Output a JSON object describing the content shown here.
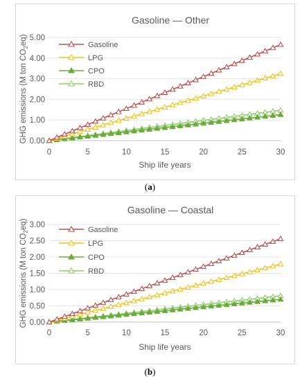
{
  "chart_data": [
    {
      "type": "line",
      "title": "Gasoline — Other",
      "xlabel": "Ship life years",
      "ylabel": "GHG emissions (M ton CO2eq)",
      "ylabel_parts": [
        "GHG emissions (M ton CO",
        "2",
        "eq)"
      ],
      "x": [
        0,
        1,
        2,
        3,
        4,
        5,
        6,
        7,
        8,
        9,
        10,
        11,
        12,
        13,
        14,
        15,
        16,
        17,
        18,
        19,
        20,
        21,
        22,
        23,
        24,
        25,
        26,
        27,
        28,
        29,
        30
      ],
      "xlim": [
        0,
        30
      ],
      "ylim": [
        0,
        5
      ],
      "x_ticks": [
        "0",
        "5",
        "10",
        "15",
        "20",
        "25",
        "30"
      ],
      "y_ticks": [
        "0.00",
        "1.00",
        "2.00",
        "3.00",
        "4.00",
        "5.00"
      ],
      "legend": "top-left",
      "series": [
        {
          "name": "Gasoline",
          "color": "#c0504d",
          "fill": "none",
          "slope": 0.155,
          "values_at": {
            "0": 0,
            "30": 4.65
          }
        },
        {
          "name": "LPG",
          "color": "#f0c419",
          "fill": "none",
          "slope": 0.108,
          "values_at": {
            "0": 0,
            "30": 3.24
          }
        },
        {
          "name": "CPO",
          "color": "#6aaa3a",
          "fill": "#6aaa3a",
          "slope": 0.042,
          "values_at": {
            "0": 0,
            "30": 1.26
          }
        },
        {
          "name": "RBD",
          "color": "#8fcc6a",
          "fill": "none",
          "slope": 0.049,
          "values_at": {
            "0": 0,
            "30": 1.47
          }
        }
      ]
    },
    {
      "type": "line",
      "title": "Gasoline — Coastal",
      "xlabel": "Ship life years",
      "ylabel": "GHG emissions (M ton CO2eq)",
      "ylabel_parts": [
        "GHG emissions (M ton CO",
        "2",
        "eq)"
      ],
      "x": [
        0,
        1,
        2,
        3,
        4,
        5,
        6,
        7,
        8,
        9,
        10,
        11,
        12,
        13,
        14,
        15,
        16,
        17,
        18,
        19,
        20,
        21,
        22,
        23,
        24,
        25,
        26,
        27,
        28,
        29,
        30
      ],
      "xlim": [
        0,
        30
      ],
      "ylim": [
        0,
        3
      ],
      "x_ticks": [
        "0",
        "5",
        "10",
        "15",
        "20",
        "25",
        "30"
      ],
      "y_ticks": [
        "0.00",
        "0.50",
        "1.00",
        "1.50",
        "2.00",
        "2.50",
        "3.00"
      ],
      "legend": "top-left",
      "series": [
        {
          "name": "Gasoline",
          "color": "#c0504d",
          "fill": "none",
          "slope": 0.0853,
          "values_at": {
            "0": 0,
            "30": 2.56
          }
        },
        {
          "name": "LPG",
          "color": "#f0c419",
          "fill": "none",
          "slope": 0.0593,
          "values_at": {
            "0": 0,
            "30": 1.78
          }
        },
        {
          "name": "CPO",
          "color": "#6aaa3a",
          "fill": "#6aaa3a",
          "slope": 0.0233,
          "values_at": {
            "0": 0,
            "30": 0.7
          }
        },
        {
          "name": "RBD",
          "color": "#8fcc6a",
          "fill": "none",
          "slope": 0.027,
          "values_at": {
            "0": 0,
            "30": 0.81
          }
        }
      ]
    }
  ],
  "captions": [
    {
      "open": "(",
      "letter": "a",
      "close": ")"
    },
    {
      "open": "(",
      "letter": "b",
      "close": ")"
    }
  ]
}
